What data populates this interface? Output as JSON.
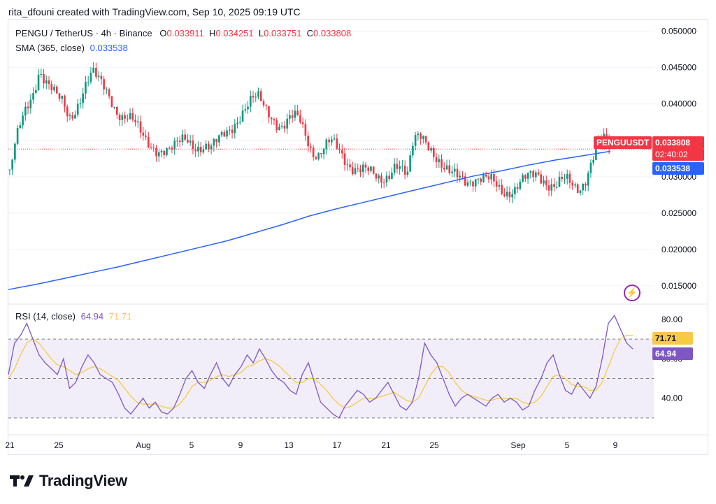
{
  "credit": "rita_dfouni created with TradingView.com, Sep 10, 2025 09:19 UTC",
  "legend": {
    "symbol": "PENGU / TetherUS · 4h · Binance",
    "o_label": "O",
    "o": "0.033911",
    "h_label": "H",
    "h": "0.034251",
    "l_label": "L",
    "l": "0.033751",
    "c_label": "C",
    "c": "0.033808",
    "sma_label": "SMA (365, close)",
    "sma": "0.033538",
    "rsi_label": "RSI (14, close)",
    "rsi": "64.94",
    "rsi_ma": "71.71"
  },
  "tags": {
    "symbol_tag": "PENGUUSDT",
    "price_tag": "0.033808",
    "countdown": "02:40:02",
    "sma_tag": "0.033538",
    "rsi_ma_tag": "71.71",
    "rsi_tag": "64.94"
  },
  "brand": "TradingView",
  "colors": {
    "up": "#089981",
    "down": "#f23645",
    "sma": "#2962ff",
    "rsi": "#7e57c2",
    "rsi_ma": "#f7c948"
  },
  "chart_data": [
    {
      "type": "candlestick",
      "title": "PENGU / TetherUS · 4h · Binance",
      "y_ticks": [
        "0.050000",
        "0.045000",
        "0.040000",
        "0.035000",
        "0.030000",
        "0.025000",
        "0.020000",
        "0.015000"
      ],
      "ylim": [
        0.0125,
        0.0516
      ],
      "x_ticks": [
        "21",
        "25",
        "Aug",
        "5",
        "9",
        "13",
        "17",
        "21",
        "25",
        "Sep",
        "5",
        "9"
      ],
      "close_path": [
        0.0305,
        0.0345,
        0.0372,
        0.0395,
        0.0418,
        0.0452,
        0.0435,
        0.042,
        0.0405,
        0.0398,
        0.038,
        0.0395,
        0.0415,
        0.0432,
        0.044,
        0.0428,
        0.042,
        0.041,
        0.0395,
        0.0385,
        0.038,
        0.037,
        0.0358,
        0.035,
        0.0346,
        0.034,
        0.0336,
        0.0332,
        0.0338,
        0.035,
        0.0355,
        0.0348,
        0.0342,
        0.0338,
        0.0334,
        0.0346,
        0.036,
        0.037,
        0.0378,
        0.0385,
        0.0392,
        0.0402,
        0.0408,
        0.04,
        0.039,
        0.0375,
        0.0365,
        0.0372,
        0.038,
        0.0378,
        0.036,
        0.0338,
        0.033,
        0.0336,
        0.0344,
        0.034,
        0.0332,
        0.0322,
        0.0315,
        0.031,
        0.0305,
        0.03,
        0.0296,
        0.03,
        0.031,
        0.032,
        0.0308,
        0.0294,
        0.0345,
        0.0362,
        0.0358,
        0.0342,
        0.0322,
        0.0305,
        0.03,
        0.0304,
        0.0306,
        0.03,
        0.0296,
        0.0292,
        0.029,
        0.0294,
        0.0292,
        0.0286,
        0.0282,
        0.028,
        0.0286,
        0.0294,
        0.0302,
        0.0308,
        0.03,
        0.029,
        0.0284,
        0.029,
        0.0292,
        0.0288,
        0.0288,
        0.03,
        0.032,
        0.0338,
        0.0348,
        0.0338
      ],
      "sma_path": [
        0.0145,
        0.0152,
        0.016,
        0.0168,
        0.0176,
        0.0185,
        0.0194,
        0.0203,
        0.0212,
        0.0223,
        0.0234,
        0.0246,
        0.0256,
        0.0265,
        0.0274,
        0.0283,
        0.0292,
        0.0301,
        0.0308,
        0.0316,
        0.0323,
        0.0329,
        0.0335
      ],
      "last_price": 0.033808,
      "sma_value": 0.033538
    },
    {
      "type": "line",
      "title": "RSI (14, close)",
      "y_ticks": [
        "80.00",
        "60.00",
        "40.00"
      ],
      "ylim": [
        25,
        86
      ],
      "bands": [
        70,
        50,
        30
      ],
      "rsi": [
        52,
        68,
        72,
        78,
        70,
        62,
        58,
        55,
        52,
        60,
        45,
        48,
        56,
        62,
        58,
        52,
        50,
        48,
        42,
        35,
        32,
        36,
        40,
        35,
        38,
        33,
        32,
        35,
        42,
        50,
        54,
        48,
        45,
        52,
        58,
        50,
        46,
        52,
        56,
        62,
        58,
        65,
        60,
        54,
        50,
        48,
        44,
        42,
        52,
        58,
        48,
        38,
        35,
        32,
        30,
        36,
        40,
        44,
        42,
        38,
        40,
        44,
        48,
        42,
        36,
        34,
        38,
        50,
        68,
        62,
        58,
        50,
        42,
        36,
        40,
        42,
        40,
        38,
        36,
        40,
        42,
        38,
        40,
        38,
        34,
        36,
        44,
        50,
        58,
        62,
        52,
        44,
        42,
        48,
        44,
        40,
        46,
        60,
        78,
        82,
        75,
        68,
        65
      ],
      "rsi_ma": [
        50,
        55,
        62,
        68,
        70,
        68,
        64,
        60,
        57,
        56,
        54,
        52,
        53,
        55,
        56,
        55,
        53,
        51,
        49,
        45,
        41,
        38,
        37,
        37,
        37,
        36,
        35,
        35,
        37,
        41,
        46,
        48,
        48,
        49,
        51,
        52,
        51,
        52,
        53,
        56,
        57,
        59,
        60,
        59,
        57,
        54,
        51,
        48,
        48,
        50,
        50,
        47,
        44,
        40,
        37,
        35,
        36,
        38,
        40,
        40,
        40,
        41,
        42,
        43,
        41,
        39,
        38,
        40,
        46,
        52,
        56,
        56,
        53,
        48,
        44,
        42,
        41,
        40,
        39,
        39,
        40,
        40,
        40,
        40,
        38,
        37,
        38,
        41,
        46,
        51,
        52,
        50,
        47,
        46,
        46,
        44,
        44,
        48,
        56,
        64,
        70,
        72,
        71.71
      ],
      "last_rsi": 64.94,
      "last_rsi_ma": 71.71
    }
  ]
}
